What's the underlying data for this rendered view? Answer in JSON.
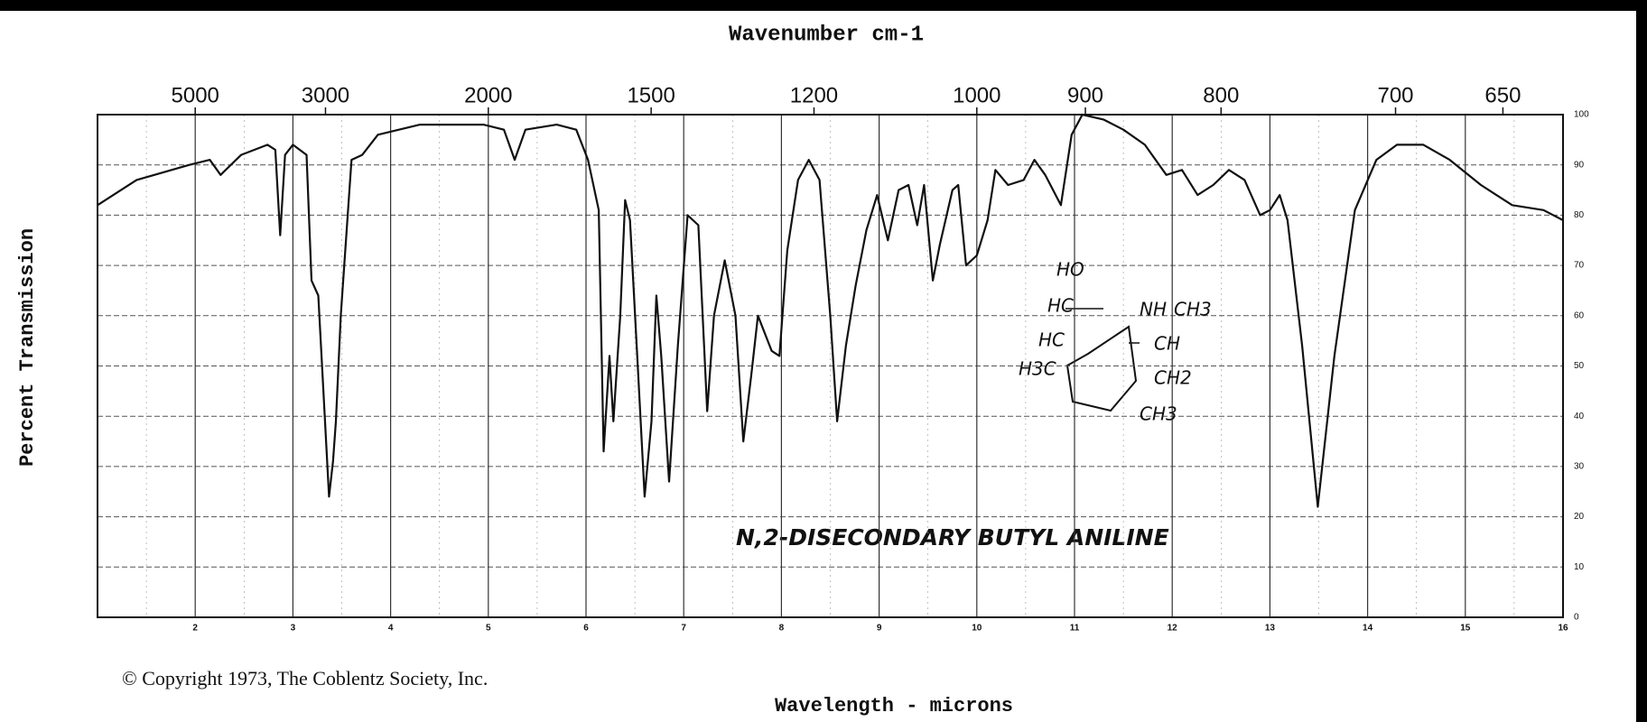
{
  "chart_data": {
    "type": "line",
    "title": "Wavenumber cm-1",
    "x_label": "Wavelength - microns",
    "y_label": "Percent Transmission",
    "copyright": "© Copyright 1973, The Coblentz Society, Inc.",
    "compound": "N,2-DISECONDARY BUTYL ANILINE",
    "structure_labels": [
      "HO",
      "HC",
      "NH",
      "CH3",
      "HC",
      "CH",
      "H3C",
      "CH2",
      "CH3"
    ],
    "color": "#111111",
    "grid": true,
    "xlim": [
      1,
      16
    ],
    "ylim": [
      0,
      100
    ],
    "xticks": [
      2,
      3,
      4,
      5,
      6,
      7,
      8,
      9,
      10,
      11,
      12,
      13,
      14,
      15,
      16
    ],
    "x2ticks": [
      5000,
      3000,
      2000,
      1500,
      1200,
      1000,
      900,
      800,
      700,
      650
    ],
    "yticks": [
      0,
      10,
      20,
      30,
      40,
      50,
      60,
      70,
      80,
      90,
      100
    ],
    "x": [
      1.0,
      1.4,
      1.94,
      2.15,
      2.26,
      2.47,
      2.74,
      2.82,
      2.87,
      2.92,
      3.0,
      3.14,
      3.19,
      3.26,
      3.37,
      3.41,
      3.44,
      3.49,
      3.6,
      3.71,
      3.87,
      4.3,
      4.95,
      5.16,
      5.27,
      5.38,
      5.7,
      5.9,
      6.02,
      6.13,
      6.18,
      6.24,
      6.28,
      6.35,
      6.4,
      6.45,
      6.53,
      6.6,
      6.67,
      6.72,
      6.77,
      6.85,
      6.94,
      7.04,
      7.15,
      7.24,
      7.31,
      7.42,
      7.53,
      7.61,
      7.69,
      7.76,
      7.9,
      7.98,
      8.06,
      8.17,
      8.28,
      8.39,
      8.5,
      8.57,
      8.66,
      8.76,
      8.87,
      8.98,
      9.09,
      9.2,
      9.3,
      9.39,
      9.46,
      9.55,
      9.62,
      9.75,
      9.81,
      9.89,
      10.0,
      10.11,
      10.19,
      10.32,
      10.48,
      10.59,
      10.7,
      10.86,
      10.97,
      11.08,
      11.3,
      11.5,
      11.72,
      11.94,
      12.1,
      12.26,
      12.42,
      12.58,
      12.74,
      12.9,
      13.0,
      13.1,
      13.18,
      13.33,
      13.49,
      13.66,
      13.87,
      14.09,
      14.3,
      14.57,
      14.84,
      15.16,
      15.48,
      15.8,
      16.0
    ],
    "values": [
      82,
      87,
      90,
      91,
      88,
      92,
      94,
      93,
      76,
      92,
      94,
      92,
      67,
      64,
      24,
      31,
      39,
      60,
      91,
      92,
      96,
      98,
      98,
      97,
      91,
      97,
      98,
      97,
      91,
      81,
      33,
      52,
      39,
      60,
      83,
      79,
      50,
      24,
      39,
      64,
      52,
      27,
      54,
      80,
      78,
      41,
      60,
      71,
      60,
      35,
      48,
      60,
      53,
      52,
      73,
      87,
      91,
      87,
      60,
      39,
      54,
      66,
      77,
      84,
      75,
      85,
      86,
      78,
      86,
      67,
      74,
      85,
      86,
      70,
      72,
      79,
      89,
      86,
      87,
      91,
      88,
      82,
      96,
      100,
      99,
      97,
      94,
      88,
      89,
      84,
      86,
      89,
      87,
      80,
      81,
      84,
      79,
      54,
      22,
      52,
      81,
      91,
      94,
      94,
      91,
      86,
      82,
      81,
      79
    ]
  }
}
